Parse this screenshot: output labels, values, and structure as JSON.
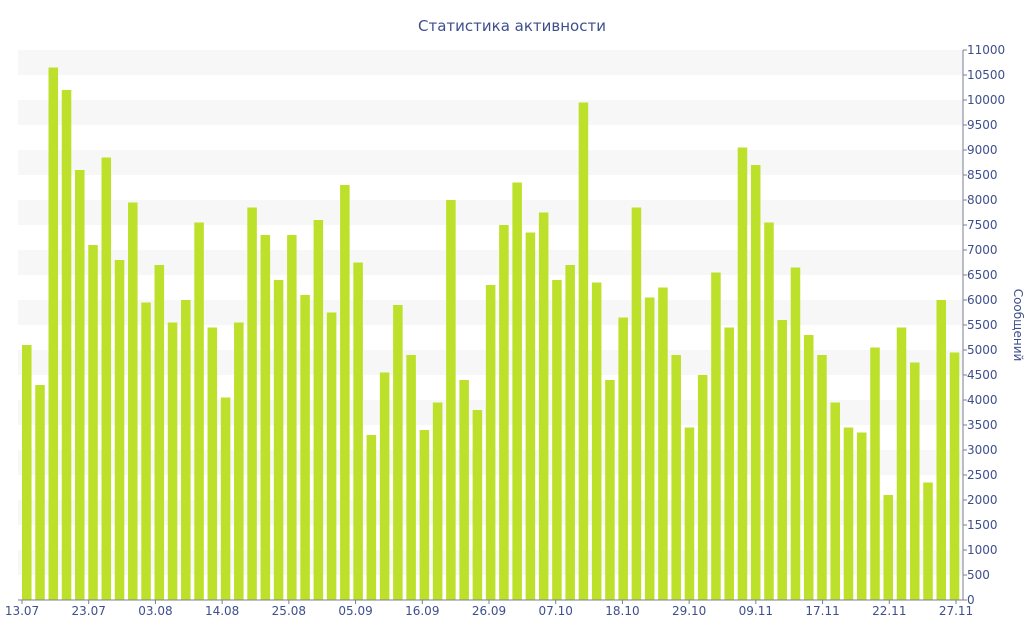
{
  "chart_data": {
    "type": "bar",
    "title": "Статистика активности",
    "xlabel": "",
    "ylabel": "Сообщений",
    "ylim": [
      0,
      11000
    ],
    "ytick_step": 500,
    "grid": "alternating horizontal bands",
    "bar_color": "#bde12a",
    "band_color": "#f7f7f7",
    "text_color": "#3e4f8c",
    "x_tick_labels": [
      "13.07",
      "23.07",
      "03.08",
      "14.08",
      "25.08",
      "05.09",
      "16.09",
      "26.09",
      "07.10",
      "18.10",
      "29.10",
      "09.11",
      "17.11",
      "22.11",
      "27.11"
    ],
    "values": [
      5100,
      4300,
      10650,
      10200,
      8600,
      7100,
      8850,
      6800,
      7950,
      5950,
      6700,
      5550,
      6000,
      7550,
      5450,
      4050,
      5550,
      7850,
      7300,
      6400,
      7300,
      6100,
      7600,
      5750,
      8300,
      6750,
      3300,
      4550,
      5900,
      4900,
      3400,
      3950,
      8000,
      4400,
      3800,
      6300,
      7500,
      8350,
      7350,
      7750,
      6400,
      6700,
      9950,
      6350,
      4400,
      5650,
      7850,
      6050,
      6250,
      4900,
      3450,
      4500,
      6550,
      5450,
      9050,
      8700,
      7550,
      5600,
      6650,
      5300,
      4900,
      3950,
      3450,
      3350,
      5050,
      2100,
      5450,
      4750,
      2350,
      6000,
      4950
    ]
  }
}
